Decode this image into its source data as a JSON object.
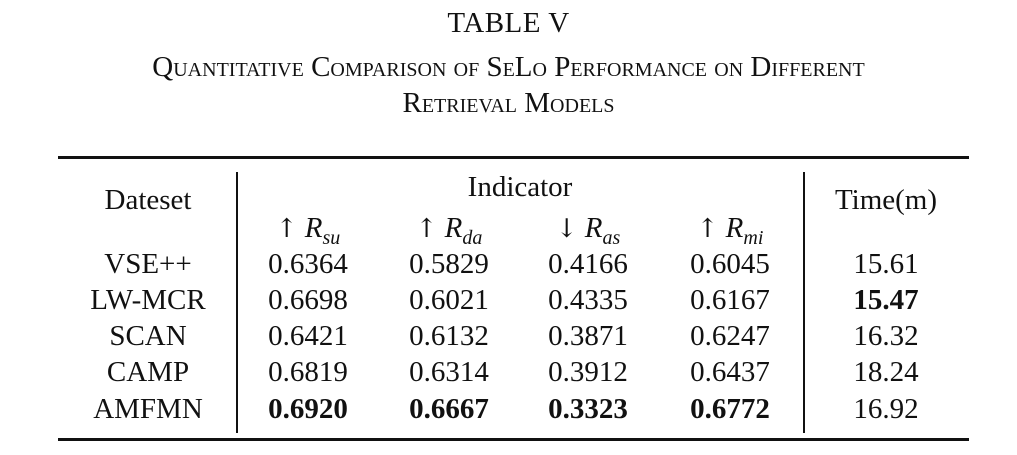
{
  "caption": {
    "number": "TABLE V",
    "title_line1": "Quantitative Comparison of SeLo Performance on Different",
    "title_line2": "Retrieval Models"
  },
  "table": {
    "header": {
      "dataset": "Dateset",
      "indicator": "Indicator",
      "time": "Time(m)",
      "metrics": [
        {
          "arrow": "↑",
          "var": "R",
          "sub": "su"
        },
        {
          "arrow": "↑",
          "var": "R",
          "sub": "da"
        },
        {
          "arrow": "↓",
          "var": "R",
          "sub": "as"
        },
        {
          "arrow": "↑",
          "var": "R",
          "sub": "mi"
        }
      ]
    },
    "rows": [
      {
        "dataset": "VSE++",
        "values": [
          "0.6364",
          "0.5829",
          "0.4166",
          "0.6045"
        ],
        "time": "15.61"
      },
      {
        "dataset": "LW-MCR",
        "values": [
          "0.6698",
          "0.6021",
          "0.4335",
          "0.6167"
        ],
        "time": "15.47"
      },
      {
        "dataset": "SCAN",
        "values": [
          "0.6421",
          "0.6132",
          "0.3871",
          "0.6247"
        ],
        "time": "16.32"
      },
      {
        "dataset": "CAMP",
        "values": [
          "0.6819",
          "0.6314",
          "0.3912",
          "0.6437"
        ],
        "time": "18.24"
      },
      {
        "dataset": "AMFMN",
        "values": [
          "0.6920",
          "0.6667",
          "0.3323",
          "0.6772"
        ],
        "time": "16.92"
      }
    ]
  }
}
